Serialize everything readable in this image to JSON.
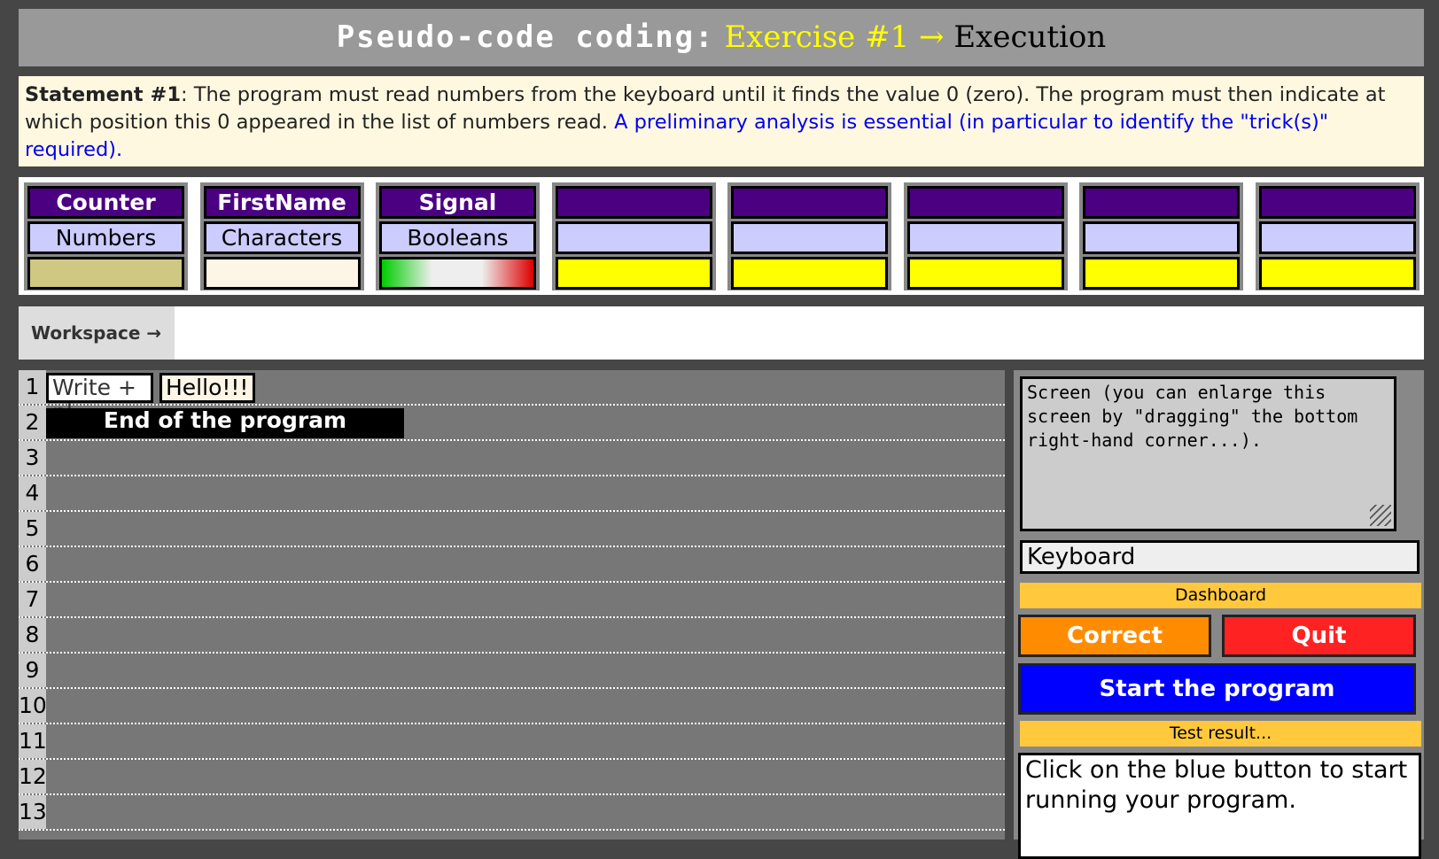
{
  "header": {
    "part1": "Pseudo-code coding:",
    "part2": "Exercise #1 →",
    "part3": "Execution"
  },
  "statement": {
    "label": "Statement #1",
    "text": ": The program must read numbers from the keyboard until it finds the value 0 (zero). The program must then indicate at which position this 0 appeared in the list of numbers read. ",
    "hint": "A preliminary analysis is essential (in particular to identify the \"trick(s)\" required)."
  },
  "variables": [
    {
      "name": "Counter",
      "type": "Numbers",
      "value_color": "#cec882"
    },
    {
      "name": "FirstName",
      "type": "Characters",
      "value_color": "#fdf5e6"
    },
    {
      "name": "Signal",
      "type": "Booleans",
      "value_color": "gradient green-white-red"
    },
    {
      "name": "",
      "type": "",
      "value_color": "#ffff00"
    },
    {
      "name": "",
      "type": "",
      "value_color": "#ffff00"
    },
    {
      "name": "",
      "type": "",
      "value_color": "#ffff00"
    },
    {
      "name": "",
      "type": "",
      "value_color": "#ffff00"
    },
    {
      "name": "",
      "type": "",
      "value_color": "#ffff00"
    }
  ],
  "workspace": {
    "label": "Workspace →"
  },
  "code": {
    "line_numbers": [
      "1",
      "2",
      "3",
      "4",
      "5",
      "6",
      "7",
      "8",
      "9",
      "10",
      "11",
      "12",
      "13"
    ],
    "line1": {
      "instruction": "Write + nl",
      "argument": "Hello!!!"
    },
    "line2": {
      "instruction": "End of the program"
    }
  },
  "panel": {
    "screen": "Screen (you can enlarge this screen by \"dragging\" the bottom right-hand corner...).",
    "keyboard_placeholder": "Keyboard",
    "dashboard": "Dashboard",
    "correct": "Correct",
    "quit": "Quit",
    "start": "Start the program",
    "test_result": "Test result...",
    "result_text": "Click on the blue button to start running your program."
  }
}
